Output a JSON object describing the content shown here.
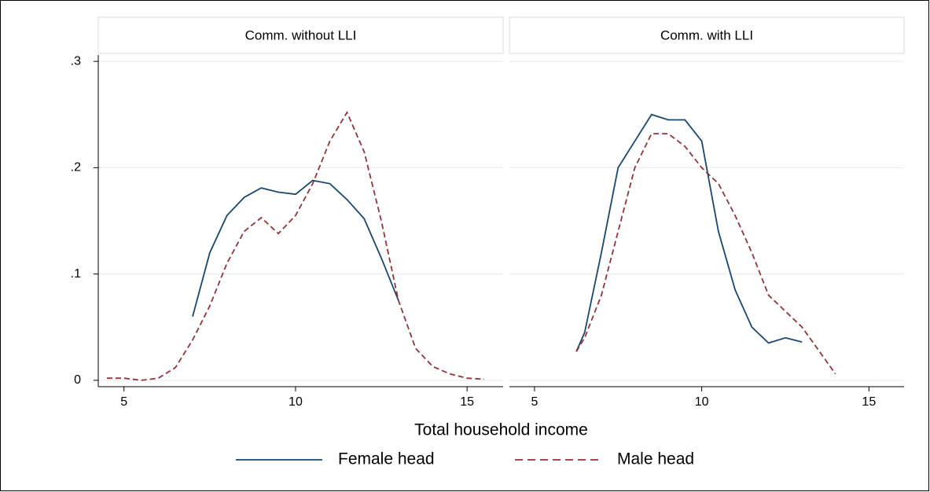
{
  "chart_data": [
    {
      "type": "line",
      "title": "Comm. without LLI",
      "xlabel": "Total household income",
      "x": [
        4.5,
        5,
        5.5,
        6,
        6.5,
        7,
        7.5,
        8,
        8.5,
        9,
        9.5,
        10,
        10.5,
        11,
        11.5,
        12,
        12.5,
        13,
        13.5,
        14,
        14.5,
        15,
        15.5
      ],
      "series": [
        {
          "name": "Female head",
          "color": "#1a476f",
          "dash": false,
          "values": [
            null,
            null,
            null,
            null,
            null,
            0.06,
            0.12,
            0.155,
            0.172,
            0.181,
            0.177,
            0.175,
            0.188,
            0.185,
            0.17,
            0.152,
            0.115,
            0.075,
            null,
            null,
            null,
            null,
            null
          ]
        },
        {
          "name": "Male head",
          "color": "#90353b",
          "dash": true,
          "values": [
            0.002,
            0.002,
            0.0,
            0.002,
            0.012,
            0.038,
            0.07,
            0.11,
            0.14,
            0.153,
            0.138,
            0.155,
            0.185,
            0.225,
            0.252,
            0.215,
            0.15,
            0.075,
            0.03,
            0.013,
            0.006,
            0.002,
            0.001
          ]
        }
      ],
      "xlim": [
        4.25,
        16.05
      ],
      "xticks": [
        5,
        10,
        15
      ],
      "ylim": [
        -0.006,
        0.306
      ],
      "yticks": [
        0,
        {
          "value": 0.1,
          "label": ".1"
        },
        {
          "value": 0.2,
          "label": ".2"
        },
        {
          "value": 0.3,
          "label": ".3"
        }
      ],
      "grid": true
    },
    {
      "type": "line",
      "title": "Comm. with LLI",
      "x": [
        6.25,
        6.5,
        7,
        7.5,
        8,
        8.5,
        9,
        9.5,
        10,
        10.5,
        11,
        11.5,
        12,
        12.5,
        13,
        13.5,
        14
      ],
      "series": [
        {
          "name": "Female head",
          "color": "#1a476f",
          "dash": false,
          "values": [
            0.027,
            0.045,
            0.12,
            0.2,
            0.225,
            0.25,
            0.245,
            0.245,
            0.225,
            0.14,
            0.085,
            0.05,
            0.035,
            0.04,
            0.036,
            null,
            null
          ]
        },
        {
          "name": "Male head",
          "color": "#90353b",
          "dash": true,
          "values": [
            0.027,
            0.04,
            0.08,
            0.14,
            0.2,
            0.232,
            0.232,
            0.22,
            0.2,
            0.185,
            0.155,
            0.12,
            0.08,
            0.065,
            0.05,
            0.028,
            0.006
          ]
        }
      ],
      "xlim": [
        4.25,
        16.05
      ],
      "xticks": [
        5,
        10,
        15
      ],
      "ylim": [
        -0.006,
        0.306
      ],
      "grid": true
    }
  ]
}
